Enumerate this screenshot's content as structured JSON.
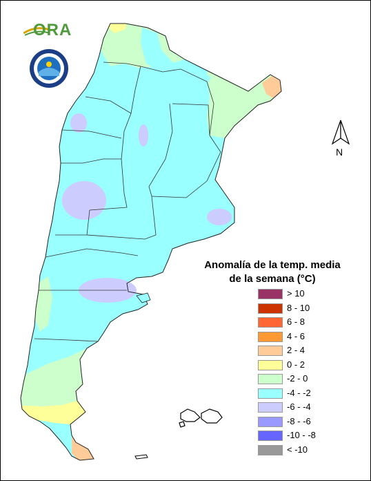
{
  "legend": {
    "title_line1": "Anomalía de la temp. media",
    "title_line2": "de la semana (°C)",
    "items": [
      {
        "label": "> 10",
        "color": "#993366"
      },
      {
        "label": "8 - 10",
        "color": "#cc3300"
      },
      {
        "label": "6 - 8",
        "color": "#ff6633"
      },
      {
        "label": "4 - 6",
        "color": "#ff9933"
      },
      {
        "label": "2 - 4",
        "color": "#ffcc99"
      },
      {
        "label": "0 - 2",
        "color": "#ffff99"
      },
      {
        "label": "-2 - 0",
        "color": "#ccffcc"
      },
      {
        "label": "-4 - -2",
        "color": "#99ffff"
      },
      {
        "label": "-6 - -4",
        "color": "#ccccff"
      },
      {
        "label": "-8 - -6",
        "color": "#9999ff"
      },
      {
        "label": "-10 - -8",
        "color": "#6666ff"
      },
      {
        "label": "< -10",
        "color": "#999999"
      }
    ]
  },
  "logos": {
    "ora_text": "ORA",
    "smn_emblem": "seal-emblem"
  },
  "compass": {
    "letter": "N",
    "icon": "north-arrow-icon"
  },
  "colors": {
    "cold_anomaly": "#99ffff",
    "mild_anomaly": "#ccffcc",
    "warm_anomaly": "#ffff99",
    "warmer_anomaly": "#ffcc99",
    "coldest_anomaly": "#ccccff"
  }
}
